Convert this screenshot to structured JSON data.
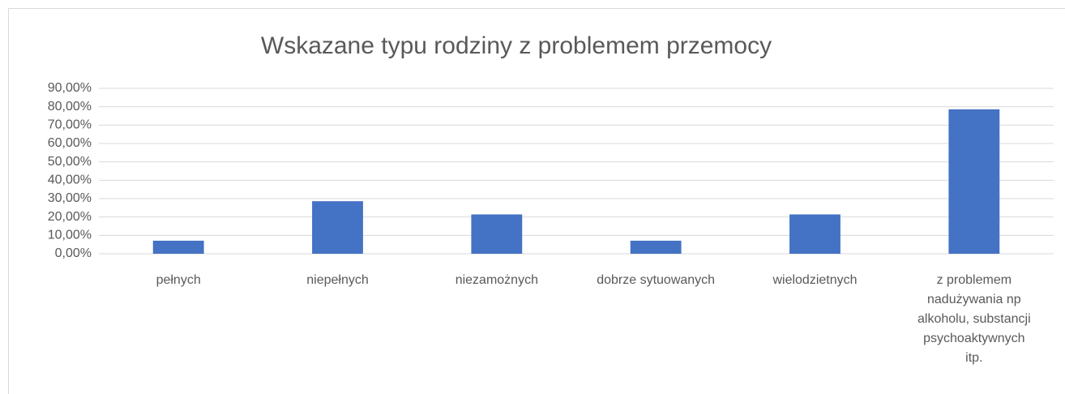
{
  "chart_data": {
    "type": "bar",
    "title": "Wskazane typu  rodziny z problemem przemocy",
    "categories": [
      "pełnych",
      "niepełnych",
      "niezamożnych",
      "dobrze sytuowanych",
      "wielodzietnych",
      "z problemem nadużywania np alkoholu, substancji psychoaktywnych itp."
    ],
    "values": [
      7.1,
      28.6,
      21.4,
      7.1,
      21.4,
      78.6
    ],
    "color": "#4472c4",
    "ylim": [
      0,
      90
    ],
    "yticks": [
      {
        "value": 0,
        "label": "0,00%"
      },
      {
        "value": 10,
        "label": "10,00%"
      },
      {
        "value": 20,
        "label": "20,00%"
      },
      {
        "value": 30,
        "label": "30,00%"
      },
      {
        "value": 40,
        "label": "40,00%"
      },
      {
        "value": 50,
        "label": "50,00%"
      },
      {
        "value": 60,
        "label": "60,00%"
      },
      {
        "value": 70,
        "label": "70,00%"
      },
      {
        "value": 80,
        "label": "80,00%"
      },
      {
        "value": 90,
        "label": "90,00%"
      }
    ],
    "grid": true
  }
}
